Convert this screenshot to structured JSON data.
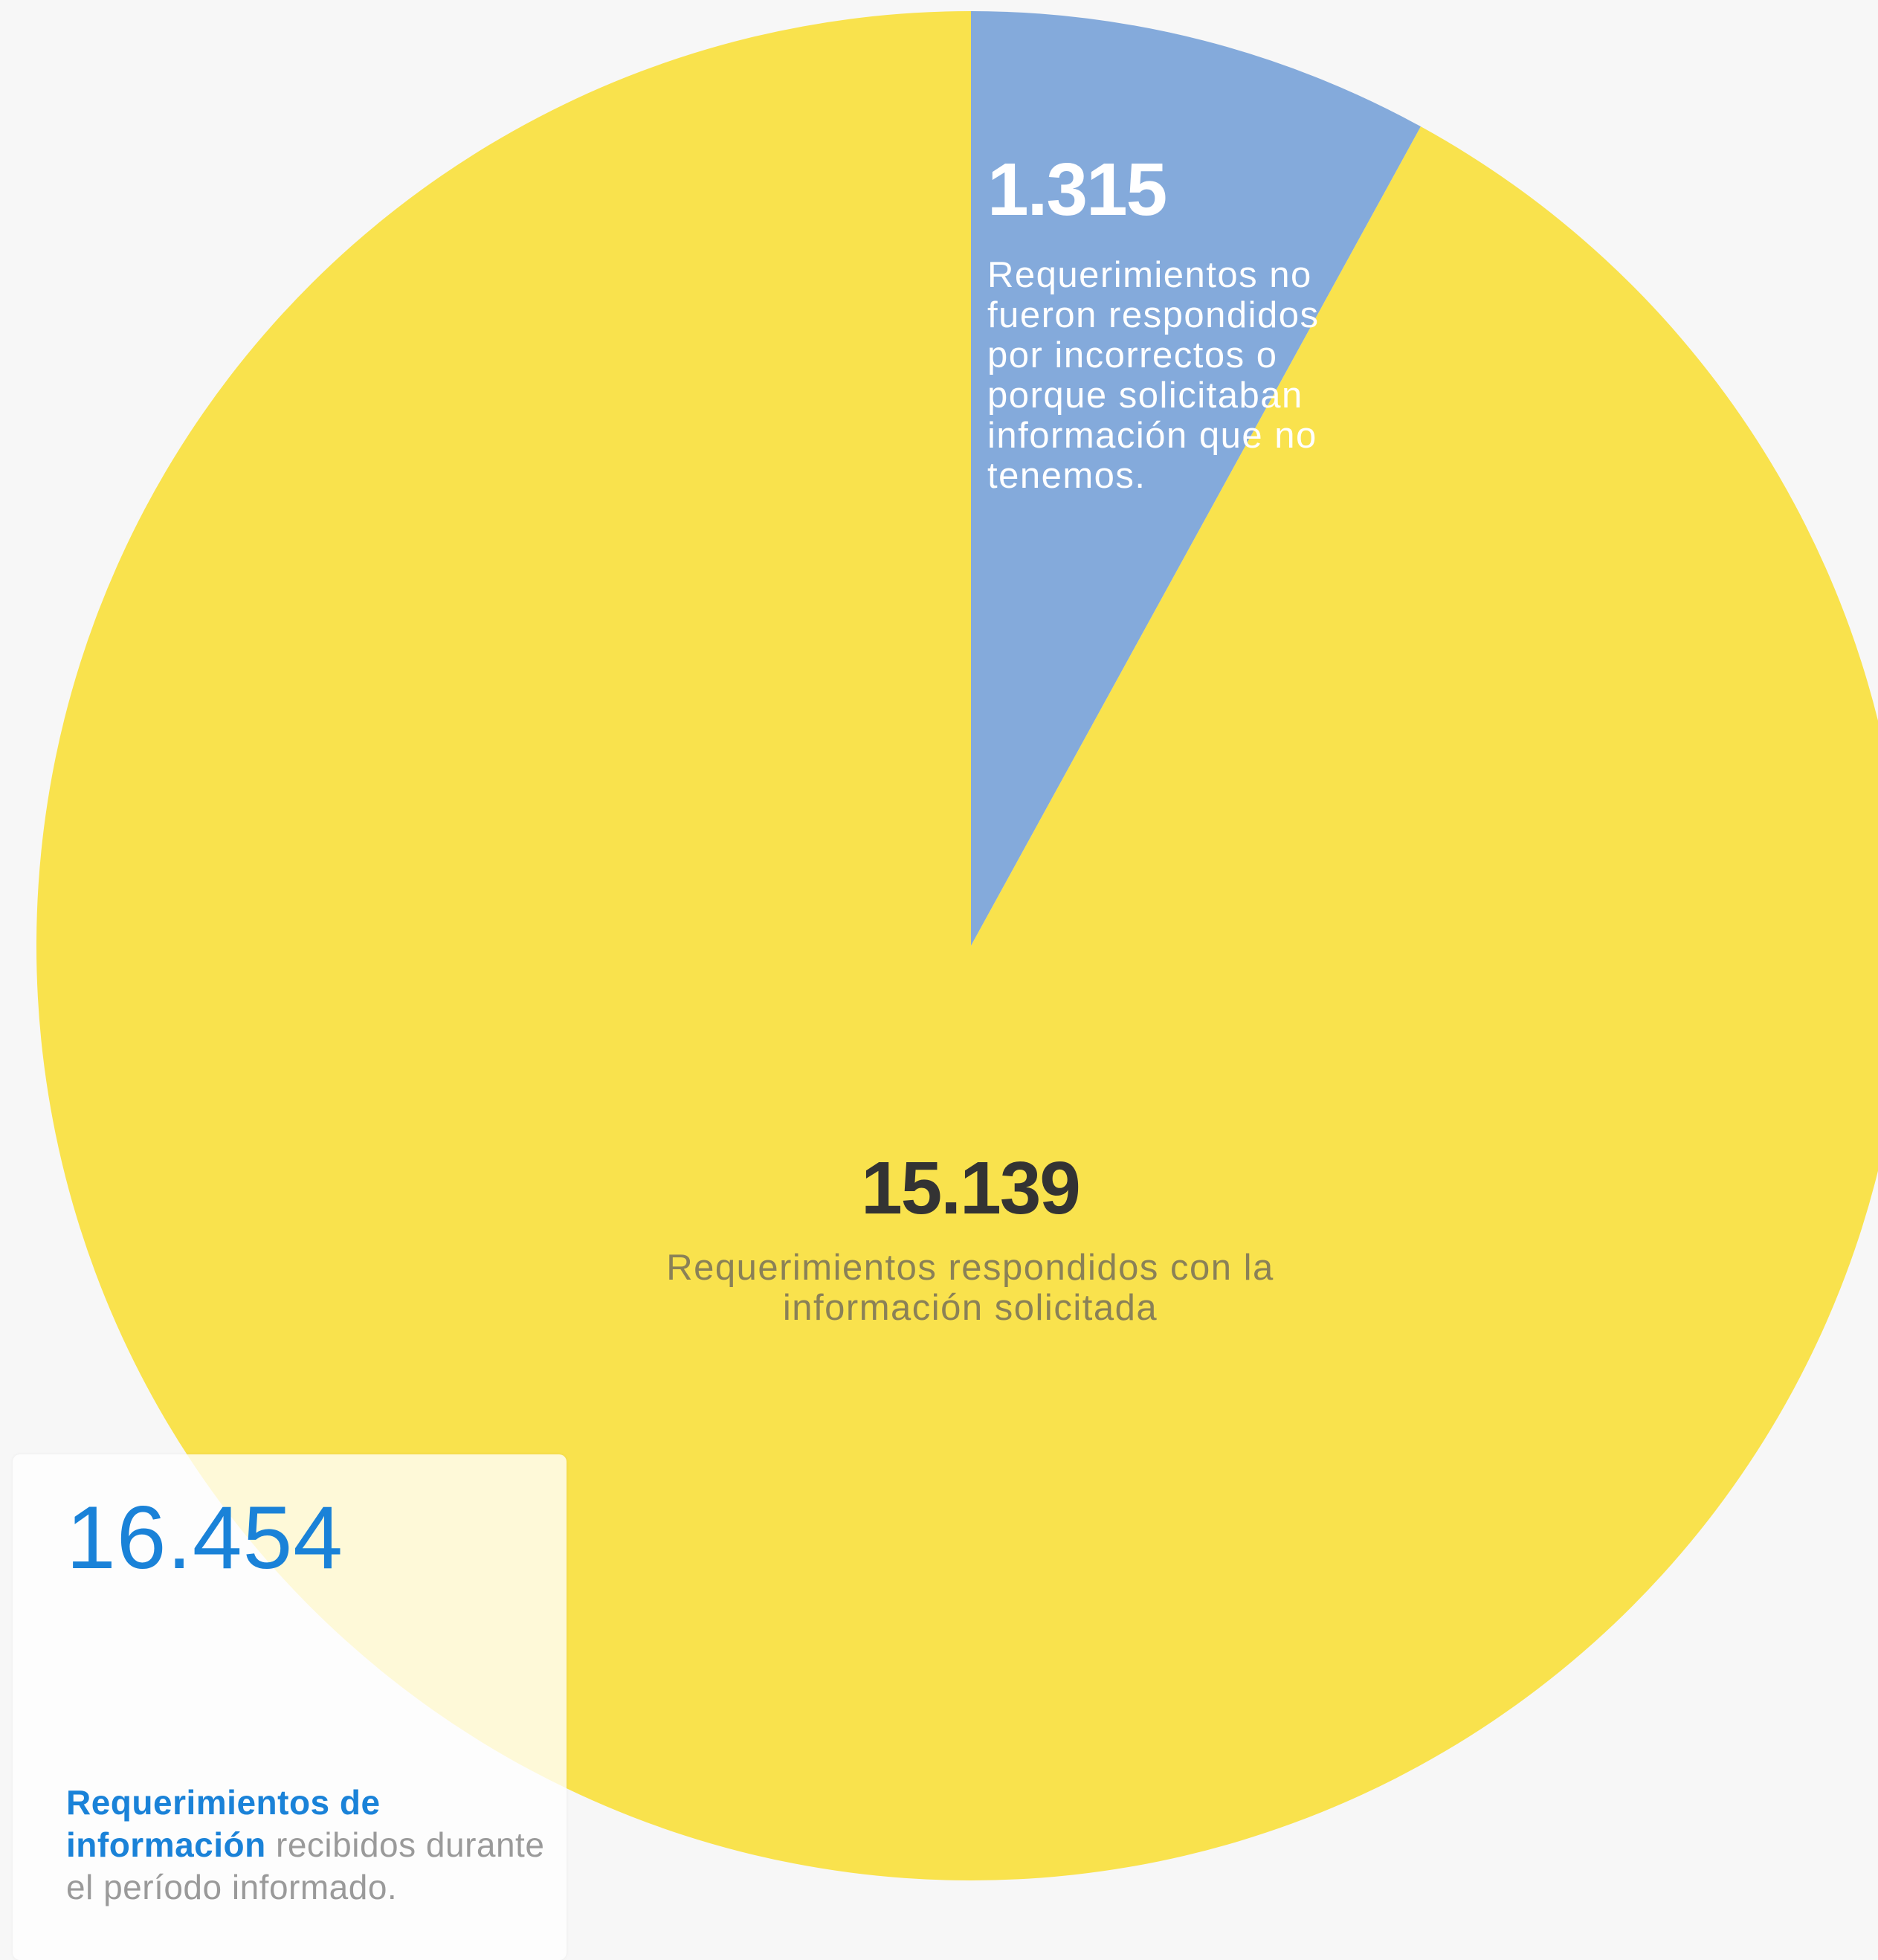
{
  "chart_data": {
    "type": "pie",
    "slices": [
      {
        "label": "Requerimientos no fueron respondidos por incorrectos o porque solicitaban información que no tenemos.",
        "value": 1315,
        "value_label": "1.315",
        "color": "#84aadb"
      },
      {
        "label": "Requerimientos respondidos con la información solicitada",
        "value": 15139,
        "value_label": "15.139",
        "color": "#f9e24d"
      }
    ],
    "start": "top",
    "direction": "clockwise"
  },
  "total": {
    "value": "16.454",
    "label_strong": "Requerimientos de información",
    "label_rest": "recibidos durante el período informado."
  }
}
